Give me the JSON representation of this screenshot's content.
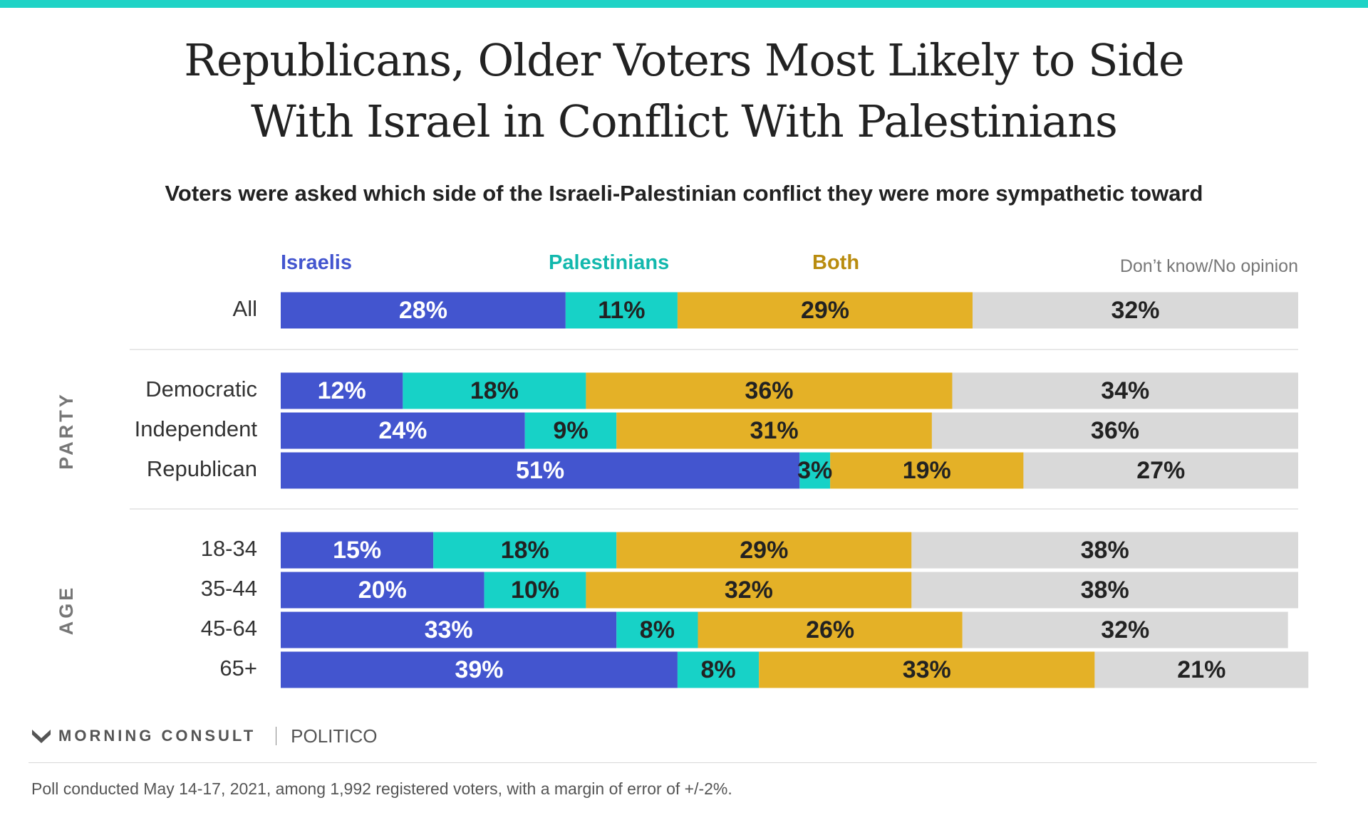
{
  "colors": {
    "accent_bar": "#1fd3c6",
    "israelis": "#4355cf",
    "palestinians": "#17d2c7",
    "both": "#e4b127",
    "dont_know": "#d9d9d9",
    "text_dark": "#222222",
    "text_gray": "#555555"
  },
  "title_lines": [
    "Republicans, Older Voters Most Likely to Side",
    "With Israel in Conflict With Palestinians"
  ],
  "subtitle": "Voters were asked which side of the Israeli-Palestinian conflict they were more sympathetic toward",
  "chart_data": {
    "type": "bar",
    "orientation": "horizontal",
    "stacked": true,
    "percent": true,
    "categories": [
      "All",
      "Democratic",
      "Independent",
      "Republican",
      "18-34",
      "35-44",
      "45-64",
      "65+"
    ],
    "groups": [
      {
        "label": "",
        "categories": [
          "All"
        ]
      },
      {
        "label": "PARTY",
        "categories": [
          "Democratic",
          "Independent",
          "Republican"
        ]
      },
      {
        "label": "AGE",
        "categories": [
          "18-34",
          "35-44",
          "45-64",
          "65+"
        ]
      }
    ],
    "series": [
      {
        "name": "Israelis",
        "values": [
          28,
          12,
          24,
          51,
          15,
          20,
          33,
          39
        ]
      },
      {
        "name": "Palestinians",
        "values": [
          11,
          18,
          9,
          3,
          18,
          10,
          8,
          8
        ]
      },
      {
        "name": "Both",
        "values": [
          29,
          36,
          31,
          19,
          29,
          32,
          26,
          33
        ]
      },
      {
        "name": "Don’t know/No opinion",
        "values": [
          32,
          34,
          36,
          27,
          38,
          38,
          32,
          21
        ]
      }
    ],
    "value_suffix": "%",
    "xlim": [
      0,
      100
    ],
    "legend": "top"
  },
  "footer": {
    "brand": "MORNING CONSULT",
    "partner": "POLITICO",
    "note": "Poll conducted May 14-17, 2021, among 1,992 registered voters, with a margin of error of +/-2%."
  }
}
